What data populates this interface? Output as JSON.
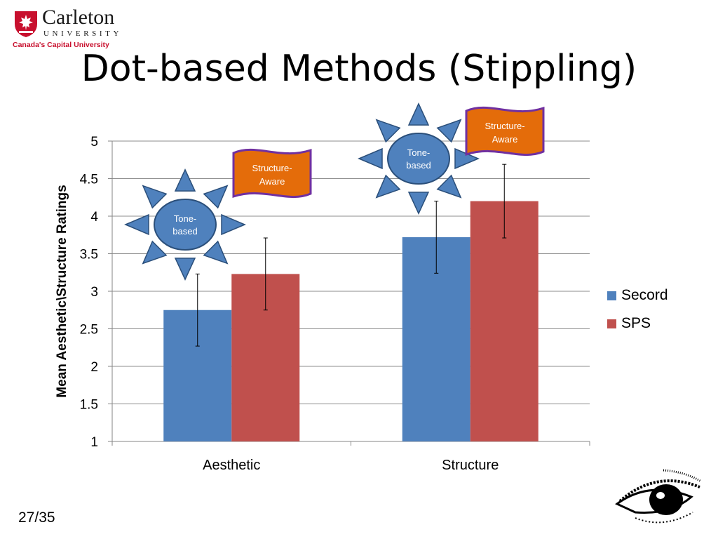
{
  "header": {
    "logo": {
      "name": "Carleton",
      "sub": "UNIVERSITY",
      "tagline": "Canada's Capital University"
    },
    "title": "Dot-based Methods (Stippling)"
  },
  "footer": {
    "slide_number": "27/35"
  },
  "colors": {
    "secord": "#4f81bd",
    "sps": "#c0504d",
    "callout_star": "#4f81bd",
    "callout_flag": "#e46c0a",
    "flag_border": "#7030a0"
  },
  "icons": {
    "logo": "carleton-shield-icon",
    "eye": "stippled-eye-icon"
  },
  "callouts": [
    {
      "label": "Tone-\nbased",
      "shape": "star",
      "group": "Aesthetic"
    },
    {
      "label": "Structure-\nAware",
      "shape": "flag",
      "group": "Aesthetic"
    },
    {
      "label": "Tone-\nbased",
      "shape": "star",
      "group": "Structure"
    },
    {
      "label": "Structure-\nAware",
      "shape": "flag",
      "group": "Structure"
    }
  ],
  "chart_data": {
    "type": "bar",
    "categories": [
      "Aesthetic",
      "Structure"
    ],
    "series": [
      {
        "name": "Secord",
        "values": [
          2.75,
          3.72
        ],
        "error": [
          0.48,
          0.48
        ]
      },
      {
        "name": "SPS",
        "values": [
          3.23,
          4.2
        ],
        "error": [
          0.48,
          0.49
        ]
      }
    ],
    "ylabel": "Mean Aesthetic\\Structure Ratings",
    "xlabel": "",
    "ylim": [
      1,
      5
    ],
    "yticks": [
      "1",
      "1.5",
      "2",
      "2.5",
      "3",
      "3.5",
      "4",
      "4.5",
      "5"
    ],
    "grid": true,
    "legend": "right"
  }
}
